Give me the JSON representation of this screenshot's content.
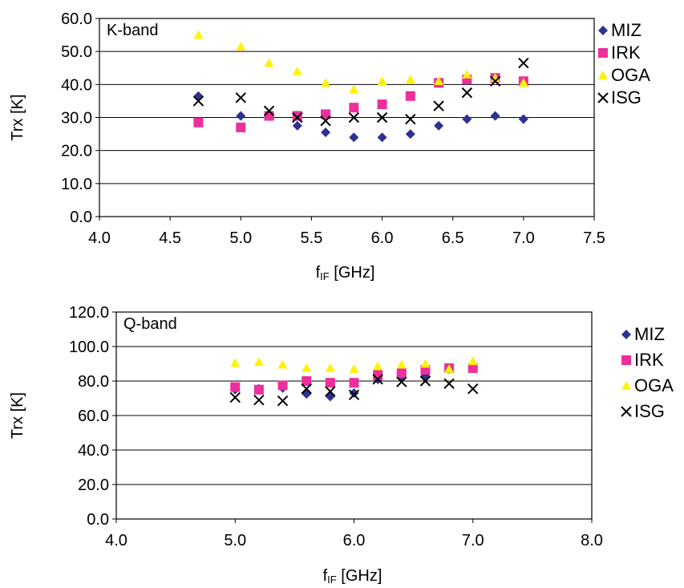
{
  "chart_data": [
    {
      "type": "scatter",
      "title": "K-band",
      "xlabel": "f",
      "xlabel_sub": "IF",
      "xlabel_unit": " [GHz]",
      "ylabel": "Trx [K]",
      "xlim": [
        4.0,
        7.5
      ],
      "ylim": [
        0.0,
        60.0
      ],
      "xticks": [
        "4.0",
        "4.5",
        "5.0",
        "5.5",
        "6.0",
        "6.5",
        "7.0",
        "7.5"
      ],
      "yticks": [
        "0.0",
        "10.0",
        "20.0",
        "30.0",
        "40.0",
        "50.0",
        "60.0"
      ],
      "grid": "horizontal",
      "legend_position": "right",
      "series": [
        {
          "name": "MIZ",
          "marker": "diamond",
          "color": "#2e3192",
          "x": [
            4.7,
            5.0,
            5.2,
            5.4,
            5.6,
            5.8,
            6.0,
            6.2,
            6.4,
            6.6,
            6.8,
            7.0
          ],
          "y": [
            36.5,
            30.5,
            31.0,
            27.5,
            25.5,
            24.0,
            24.0,
            25.0,
            27.5,
            29.5,
            30.5,
            29.5
          ]
        },
        {
          "name": "IRK",
          "marker": "square",
          "color": "#ec2f9b",
          "x": [
            4.7,
            5.0,
            5.2,
            5.4,
            5.6,
            5.8,
            6.0,
            6.2,
            6.4,
            6.6,
            6.8,
            7.0
          ],
          "y": [
            28.5,
            27.0,
            30.5,
            30.5,
            31.0,
            33.0,
            34.0,
            36.5,
            40.5,
            41.5,
            42.0,
            41.0
          ]
        },
        {
          "name": "OGA",
          "marker": "triangle",
          "color": "#fff200",
          "x": [
            4.7,
            5.0,
            5.2,
            5.4,
            5.6,
            5.8,
            6.0,
            6.2,
            6.4,
            6.6,
            6.8,
            7.0
          ],
          "y": [
            55.0,
            51.5,
            46.5,
            44.0,
            40.5,
            38.5,
            41.0,
            41.5,
            41.0,
            43.0,
            42.0,
            40.5
          ]
        },
        {
          "name": "ISG",
          "marker": "cross",
          "color": "#000000",
          "x": [
            4.7,
            5.0,
            5.2,
            5.4,
            5.6,
            5.8,
            6.0,
            6.2,
            6.4,
            6.6,
            6.8,
            7.0
          ],
          "y": [
            35.0,
            36.0,
            32.0,
            30.0,
            29.0,
            30.0,
            30.0,
            29.5,
            33.5,
            37.5,
            41.0,
            46.5
          ]
        }
      ]
    },
    {
      "type": "scatter",
      "title": "Q-band",
      "xlabel": "f",
      "xlabel_sub": "IF",
      "xlabel_unit": " [GHz]",
      "ylabel": "Trx [K]",
      "xlim": [
        4.0,
        8.0
      ],
      "ylim": [
        0.0,
        120.0
      ],
      "xticks": [
        "4.0",
        "5.0",
        "6.0",
        "7.0",
        "8.0"
      ],
      "yticks": [
        "0.0",
        "20.0",
        "40.0",
        "60.0",
        "80.0",
        "100.0",
        "120.0"
      ],
      "grid": "horizontal",
      "legend_position": "right",
      "series": [
        {
          "name": "MIZ",
          "marker": "diamond",
          "color": "#2e3192",
          "x": [
            5.0,
            5.2,
            5.4,
            5.6,
            5.8,
            6.0,
            6.2,
            6.4,
            6.6,
            6.8,
            7.0
          ],
          "y": [
            75.0,
            75.5,
            76.0,
            72.5,
            71.0,
            73.0,
            81.0,
            82.0,
            83.0,
            87.0,
            88.0
          ]
        },
        {
          "name": "IRK",
          "marker": "square",
          "color": "#ec2f9b",
          "x": [
            5.0,
            5.2,
            5.4,
            5.6,
            5.8,
            6.0,
            6.2,
            6.4,
            6.6,
            6.8,
            7.0
          ],
          "y": [
            76.5,
            75.0,
            77.5,
            80.0,
            79.0,
            79.0,
            83.5,
            84.5,
            86.5,
            87.5,
            87.5
          ]
        },
        {
          "name": "OGA",
          "marker": "triangle",
          "color": "#fff200",
          "x": [
            5.0,
            5.2,
            5.4,
            5.6,
            5.8,
            6.0,
            6.2,
            6.4,
            6.6,
            6.8,
            7.0
          ],
          "y": [
            90.5,
            91.0,
            89.5,
            87.5,
            87.5,
            87.0,
            88.5,
            89.5,
            90.0,
            87.0,
            91.5
          ]
        },
        {
          "name": "ISG",
          "marker": "cross",
          "color": "#000000",
          "x": [
            5.0,
            5.2,
            5.4,
            5.6,
            5.8,
            6.0,
            6.2,
            6.4,
            6.6,
            6.8,
            7.0
          ],
          "y": [
            70.5,
            69.0,
            68.5,
            75.5,
            74.0,
            72.0,
            81.0,
            79.5,
            80.0,
            78.5,
            75.5
          ]
        }
      ]
    }
  ]
}
